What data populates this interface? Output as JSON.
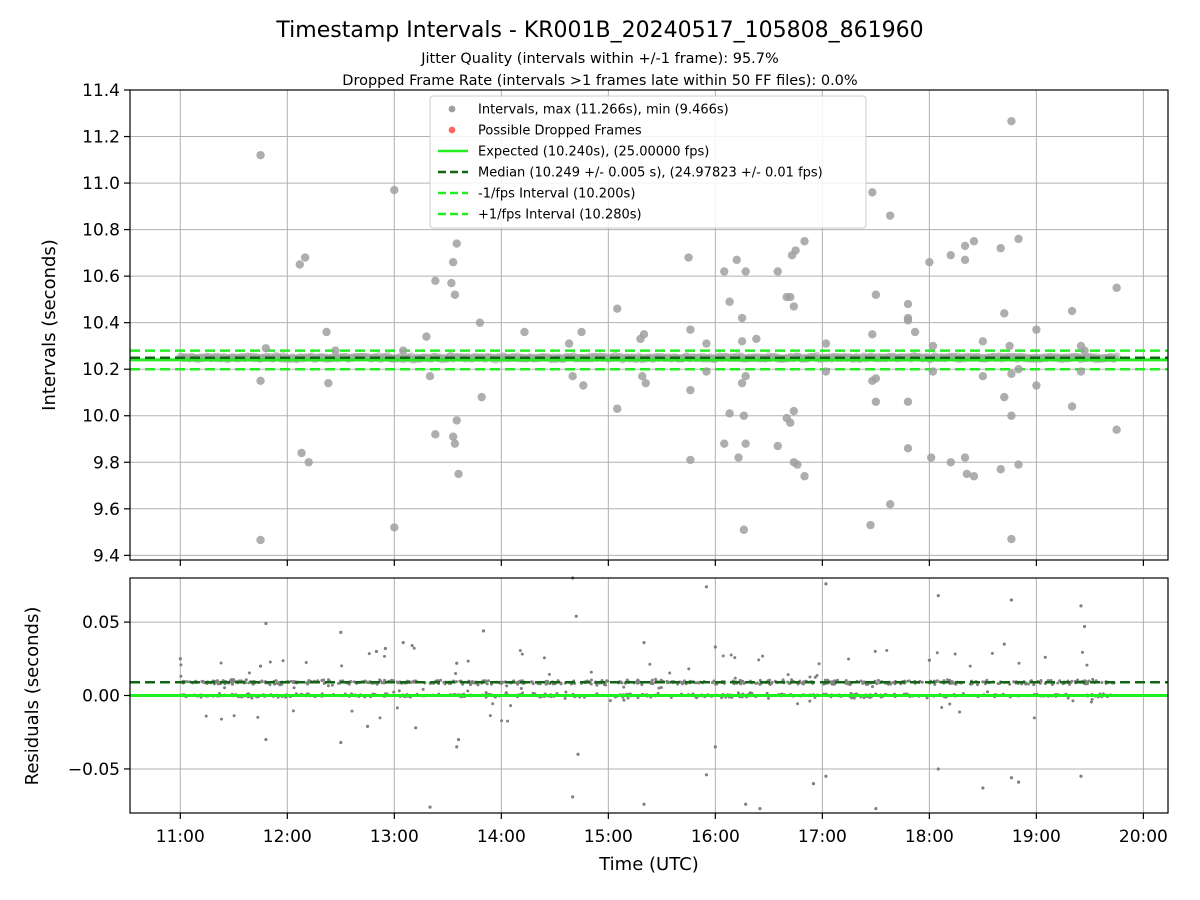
{
  "title": "Timestamp Intervals - KR001B_20240517_105808_861960",
  "subtitle_lines": [
    "Jitter Quality (intervals within +/-1 frame): 95.7%",
    "Dropped Frame Rate (intervals >1 frames late within 50 FF files): 0.0%"
  ],
  "colors": {
    "points": "#808080",
    "dropped": "#ff4444",
    "expected": "#22ee22",
    "median": "#116611",
    "interval": "#22ee22"
  },
  "chart_data": [
    {
      "type": "scatter",
      "panel": "top",
      "xlabel": "",
      "ylabel": "Intervals (seconds)",
      "xlim_hours": [
        10.53,
        20.23
      ],
      "ylim": [
        9.38,
        11.4
      ],
      "yticks": [
        9.4,
        9.6,
        9.8,
        10.0,
        10.2,
        10.4,
        10.6,
        10.8,
        11.0,
        11.2,
        11.4
      ],
      "ytick_labels": [
        "9.4",
        "9.6",
        "9.8",
        "10.0",
        "10.2",
        "10.4",
        "10.6",
        "10.8",
        "11.0",
        "11.2",
        "11.4"
      ],
      "grid": true,
      "legend_position": "top-center",
      "legend": [
        {
          "label": "Intervals, max (11.266s), min (9.466s)",
          "kind": "marker",
          "color": "#a0a0a0"
        },
        {
          "label": "Possible Dropped Frames",
          "kind": "marker",
          "color": "#ff6666"
        },
        {
          "label": "Expected (10.240s), (25.00000 fps)",
          "kind": "solid",
          "color": "#22ee22"
        },
        {
          "label": "Median (10.249 +/- 0.005 s), (24.97823 +/- 0.01 fps)",
          "kind": "dashed",
          "color": "#116611"
        },
        {
          "label": "-1/fps Interval (10.200s)",
          "kind": "dashed",
          "color": "#22ee22"
        },
        {
          "label": "+1/fps Interval (10.280s)",
          "kind": "dashed",
          "color": "#22ee22"
        }
      ],
      "hlines": {
        "expected": 10.24,
        "median": 10.249,
        "minus_interval": 10.2,
        "plus_interval": 10.28
      },
      "band": {
        "x_start": "11:00",
        "x_end": "19:45",
        "center": 10.249,
        "spread": 0.012
      },
      "outliers": [
        {
          "x": "11:45",
          "y": 11.12
        },
        {
          "x": "11:45",
          "y": 10.15
        },
        {
          "x": "11:45",
          "y": 9.466
        },
        {
          "x": "11:48",
          "y": 10.29
        },
        {
          "x": "12:07",
          "y": 10.65
        },
        {
          "x": "12:10",
          "y": 10.68
        },
        {
          "x": "12:08",
          "y": 9.84
        },
        {
          "x": "12:12",
          "y": 9.8
        },
        {
          "x": "12:22",
          "y": 10.36
        },
        {
          "x": "12:23",
          "y": 10.14
        },
        {
          "x": "12:27",
          "y": 10.28
        },
        {
          "x": "13:00",
          "y": 10.97
        },
        {
          "x": "13:00",
          "y": 9.52
        },
        {
          "x": "13:05",
          "y": 10.28
        },
        {
          "x": "13:18",
          "y": 10.34
        },
        {
          "x": "13:20",
          "y": 10.17
        },
        {
          "x": "13:23",
          "y": 10.58
        },
        {
          "x": "13:23",
          "y": 9.92
        },
        {
          "x": "13:32",
          "y": 10.57
        },
        {
          "x": "13:33",
          "y": 10.66
        },
        {
          "x": "13:34",
          "y": 10.52
        },
        {
          "x": "13:35",
          "y": 10.74
        },
        {
          "x": "13:33",
          "y": 9.91
        },
        {
          "x": "13:34",
          "y": 9.88
        },
        {
          "x": "13:35",
          "y": 9.98
        },
        {
          "x": "13:36",
          "y": 9.75
        },
        {
          "x": "13:48",
          "y": 10.4
        },
        {
          "x": "13:49",
          "y": 10.08
        },
        {
          "x": "14:13",
          "y": 10.36
        },
        {
          "x": "14:38",
          "y": 10.31
        },
        {
          "x": "14:40",
          "y": 10.17
        },
        {
          "x": "14:45",
          "y": 10.36
        },
        {
          "x": "14:46",
          "y": 10.13
        },
        {
          "x": "15:05",
          "y": 10.46
        },
        {
          "x": "15:05",
          "y": 10.03
        },
        {
          "x": "15:18",
          "y": 10.33
        },
        {
          "x": "15:20",
          "y": 10.35
        },
        {
          "x": "15:19",
          "y": 10.17
        },
        {
          "x": "15:21",
          "y": 10.14
        },
        {
          "x": "15:45",
          "y": 10.68
        },
        {
          "x": "15:46",
          "y": 10.37
        },
        {
          "x": "15:46",
          "y": 10.11
        },
        {
          "x": "15:46",
          "y": 9.81
        },
        {
          "x": "15:55",
          "y": 10.31
        },
        {
          "x": "15:55",
          "y": 10.19
        },
        {
          "x": "16:05",
          "y": 10.62
        },
        {
          "x": "16:08",
          "y": 10.49
        },
        {
          "x": "16:08",
          "y": 10.01
        },
        {
          "x": "16:05",
          "y": 9.88
        },
        {
          "x": "16:12",
          "y": 10.67
        },
        {
          "x": "16:13",
          "y": 9.82
        },
        {
          "x": "16:15",
          "y": 10.42
        },
        {
          "x": "16:15",
          "y": 10.32
        },
        {
          "x": "16:15",
          "y": 10.14
        },
        {
          "x": "16:16",
          "y": 10.0
        },
        {
          "x": "16:16",
          "y": 9.51
        },
        {
          "x": "16:17",
          "y": 10.62
        },
        {
          "x": "16:17",
          "y": 9.88
        },
        {
          "x": "16:17",
          "y": 10.17
        },
        {
          "x": "16:23",
          "y": 10.33
        },
        {
          "x": "16:35",
          "y": 10.62
        },
        {
          "x": "16:35",
          "y": 9.87
        },
        {
          "x": "16:40",
          "y": 10.51
        },
        {
          "x": "16:42",
          "y": 10.51
        },
        {
          "x": "16:43",
          "y": 10.69
        },
        {
          "x": "16:45",
          "y": 10.71
        },
        {
          "x": "16:44",
          "y": 10.47
        },
        {
          "x": "16:40",
          "y": 9.99
        },
        {
          "x": "16:42",
          "y": 9.97
        },
        {
          "x": "16:44",
          "y": 10.02
        },
        {
          "x": "16:44",
          "y": 9.8
        },
        {
          "x": "16:46",
          "y": 9.79
        },
        {
          "x": "16:50",
          "y": 10.75
        },
        {
          "x": "16:50",
          "y": 9.74
        },
        {
          "x": "17:02",
          "y": 10.31
        },
        {
          "x": "17:02",
          "y": 10.19
        },
        {
          "x": "17:28",
          "y": 10.35
        },
        {
          "x": "17:28",
          "y": 10.15
        },
        {
          "x": "17:28",
          "y": 10.96
        },
        {
          "x": "17:27",
          "y": 9.53
        },
        {
          "x": "17:30",
          "y": 10.52
        },
        {
          "x": "17:30",
          "y": 10.06
        },
        {
          "x": "17:30",
          "y": 10.16
        },
        {
          "x": "17:38",
          "y": 10.86
        },
        {
          "x": "17:38",
          "y": 9.62
        },
        {
          "x": "17:48",
          "y": 10.48
        },
        {
          "x": "17:48",
          "y": 10.41
        },
        {
          "x": "17:48",
          "y": 10.42
        },
        {
          "x": "17:48",
          "y": 10.06
        },
        {
          "x": "17:48",
          "y": 9.86
        },
        {
          "x": "17:52",
          "y": 10.36
        },
        {
          "x": "18:00",
          "y": 10.66
        },
        {
          "x": "18:02",
          "y": 10.3
        },
        {
          "x": "18:02",
          "y": 10.19
        },
        {
          "x": "18:01",
          "y": 9.82
        },
        {
          "x": "18:12",
          "y": 10.69
        },
        {
          "x": "18:12",
          "y": 9.8
        },
        {
          "x": "18:20",
          "y": 10.67
        },
        {
          "x": "18:20",
          "y": 10.73
        },
        {
          "x": "18:25",
          "y": 10.75
        },
        {
          "x": "18:20",
          "y": 9.82
        },
        {
          "x": "18:21",
          "y": 9.75
        },
        {
          "x": "18:25",
          "y": 9.74
        },
        {
          "x": "18:30",
          "y": 10.32
        },
        {
          "x": "18:30",
          "y": 10.17
        },
        {
          "x": "18:40",
          "y": 10.72
        },
        {
          "x": "18:40",
          "y": 9.77
        },
        {
          "x": "18:42",
          "y": 10.44
        },
        {
          "x": "18:42",
          "y": 10.08
        },
        {
          "x": "18:45",
          "y": 10.3
        },
        {
          "x": "18:46",
          "y": 10.18
        },
        {
          "x": "18:46",
          "y": 10.0
        },
        {
          "x": "18:46",
          "y": 11.266
        },
        {
          "x": "18:46",
          "y": 9.47
        },
        {
          "x": "18:50",
          "y": 10.76
        },
        {
          "x": "18:50",
          "y": 9.79
        },
        {
          "x": "18:50",
          "y": 10.2
        },
        {
          "x": "19:00",
          "y": 10.37
        },
        {
          "x": "19:00",
          "y": 10.13
        },
        {
          "x": "19:20",
          "y": 10.45
        },
        {
          "x": "19:20",
          "y": 10.04
        },
        {
          "x": "19:25",
          "y": 10.3
        },
        {
          "x": "19:25",
          "y": 10.19
        },
        {
          "x": "19:27",
          "y": 10.28
        },
        {
          "x": "19:45",
          "y": 10.55
        },
        {
          "x": "19:45",
          "y": 9.94
        }
      ]
    },
    {
      "type": "scatter",
      "panel": "bottom",
      "xlabel": "Time (UTC)",
      "ylabel": "Residuals (seconds)",
      "xlim_hours": [
        10.53,
        20.23
      ],
      "ylim": [
        -0.08,
        0.08
      ],
      "yticks": [
        -0.05,
        0.0,
        0.05
      ],
      "ytick_labels": [
        "−0.05",
        "0.00",
        "0.05"
      ],
      "xticks": [
        "11:00",
        "12:00",
        "13:00",
        "14:00",
        "15:00",
        "16:00",
        "17:00",
        "18:00",
        "19:00",
        "20:00"
      ],
      "grid": true,
      "hlines": {
        "expected": 0.0,
        "median": 0.009
      },
      "bands": [
        {
          "center": 0.009,
          "spread": 0.002,
          "count": 620
        },
        {
          "center": 0.0,
          "spread": 0.002,
          "count": 380
        }
      ],
      "outliers": [
        {
          "x": "11:00",
          "y": 0.025
        },
        {
          "x": "11:45",
          "y": 0.02
        },
        {
          "x": "11:48",
          "y": 0.049
        },
        {
          "x": "11:48",
          "y": -0.03
        },
        {
          "x": "12:30",
          "y": 0.043
        },
        {
          "x": "12:30",
          "y": -0.032
        },
        {
          "x": "12:45",
          "y": -0.021
        },
        {
          "x": "12:50",
          "y": 0.03
        },
        {
          "x": "12:55",
          "y": 0.032
        },
        {
          "x": "13:05",
          "y": 0.036
        },
        {
          "x": "13:10",
          "y": 0.034
        },
        {
          "x": "13:12",
          "y": -0.022
        },
        {
          "x": "13:20",
          "y": -0.076
        },
        {
          "x": "13:35",
          "y": 0.022
        },
        {
          "x": "13:35",
          "y": -0.035
        },
        {
          "x": "13:36",
          "y": -0.03
        },
        {
          "x": "13:50",
          "y": 0.044
        },
        {
          "x": "14:40",
          "y": 0.08
        },
        {
          "x": "14:40",
          "y": -0.069
        },
        {
          "x": "14:42",
          "y": 0.054
        },
        {
          "x": "14:43",
          "y": -0.04
        },
        {
          "x": "15:20",
          "y": -0.074
        },
        {
          "x": "15:20",
          "y": 0.036
        },
        {
          "x": "15:55",
          "y": 0.074
        },
        {
          "x": "15:55",
          "y": -0.054
        },
        {
          "x": "16:00",
          "y": 0.033
        },
        {
          "x": "16:00",
          "y": -0.035
        },
        {
          "x": "16:17",
          "y": -0.074
        },
        {
          "x": "16:25",
          "y": -0.077
        },
        {
          "x": "16:55",
          "y": -0.06
        },
        {
          "x": "17:02",
          "y": 0.076
        },
        {
          "x": "17:02",
          "y": -0.055
        },
        {
          "x": "17:30",
          "y": -0.077
        },
        {
          "x": "18:00",
          "y": 0.024
        },
        {
          "x": "18:05",
          "y": 0.068
        },
        {
          "x": "18:05",
          "y": -0.05
        },
        {
          "x": "18:30",
          "y": -0.063
        },
        {
          "x": "18:42",
          "y": 0.035
        },
        {
          "x": "18:46",
          "y": 0.065
        },
        {
          "x": "18:46",
          "y": -0.056
        },
        {
          "x": "18:50",
          "y": -0.059
        },
        {
          "x": "19:05",
          "y": 0.026
        },
        {
          "x": "19:25",
          "y": 0.061
        },
        {
          "x": "19:25",
          "y": -0.055
        },
        {
          "x": "19:27",
          "y": 0.047
        }
      ]
    }
  ]
}
